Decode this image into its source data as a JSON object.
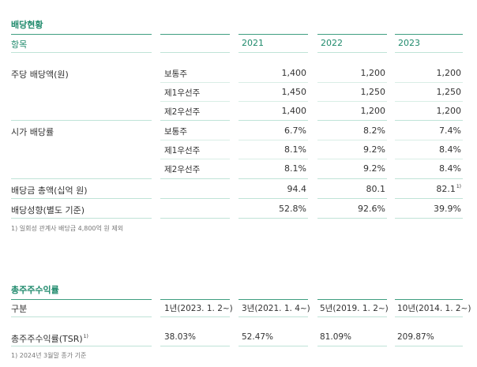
{
  "dividend": {
    "title": "배당현황",
    "header": {
      "item": "항목",
      "years": [
        "2021",
        "2022",
        "2023"
      ]
    },
    "rows": [
      {
        "label": "주당 배당액(원)",
        "sub": "보통주",
        "values": [
          "1,400",
          "1,200",
          "1,200"
        ]
      },
      {
        "label": "",
        "sub": "제1우선주",
        "values": [
          "1,450",
          "1,250",
          "1,250"
        ]
      },
      {
        "label": "",
        "sub": "제2우선주",
        "values": [
          "1,400",
          "1,200",
          "1,200"
        ]
      },
      {
        "label": "시가 배당률",
        "sub": "보통주",
        "values": [
          "6.7%",
          "8.2%",
          "7.4%"
        ]
      },
      {
        "label": "",
        "sub": "제1우선주",
        "values": [
          "8.1%",
          "9.2%",
          "8.4%"
        ]
      },
      {
        "label": "",
        "sub": "제2우선주",
        "values": [
          "8.1%",
          "9.2%",
          "8.4%"
        ]
      },
      {
        "label": "배당금 총액(십억 원)",
        "sub": "",
        "values": [
          "94.4",
          "80.1",
          "82.1"
        ],
        "last_sup": "1)"
      },
      {
        "label": "배당성향(별도 기준)",
        "sub": "",
        "values": [
          "52.8%",
          "92.6%",
          "39.9%"
        ]
      }
    ],
    "footnote": "1) 일회성 관계사 배당금 4,800억 원 제외"
  },
  "tsr": {
    "title": "총주주수익률",
    "header": {
      "label": "구분",
      "periods": [
        "1년(2023. 1. 2~)",
        "3년(2021. 1. 4~)",
        "5년(2019. 1. 2~)",
        "10년(2014. 1. 2~)"
      ]
    },
    "row": {
      "label": "총주주수익률(TSR)",
      "label_sup": "1)",
      "values": [
        "38.03%",
        "52.47%",
        "81.09%",
        "209.87%"
      ]
    },
    "footnote": "1) 2024년 3월말 종가 기준"
  },
  "colors": {
    "accent": "#1f8a6c",
    "rule": "#bfe3d7"
  }
}
